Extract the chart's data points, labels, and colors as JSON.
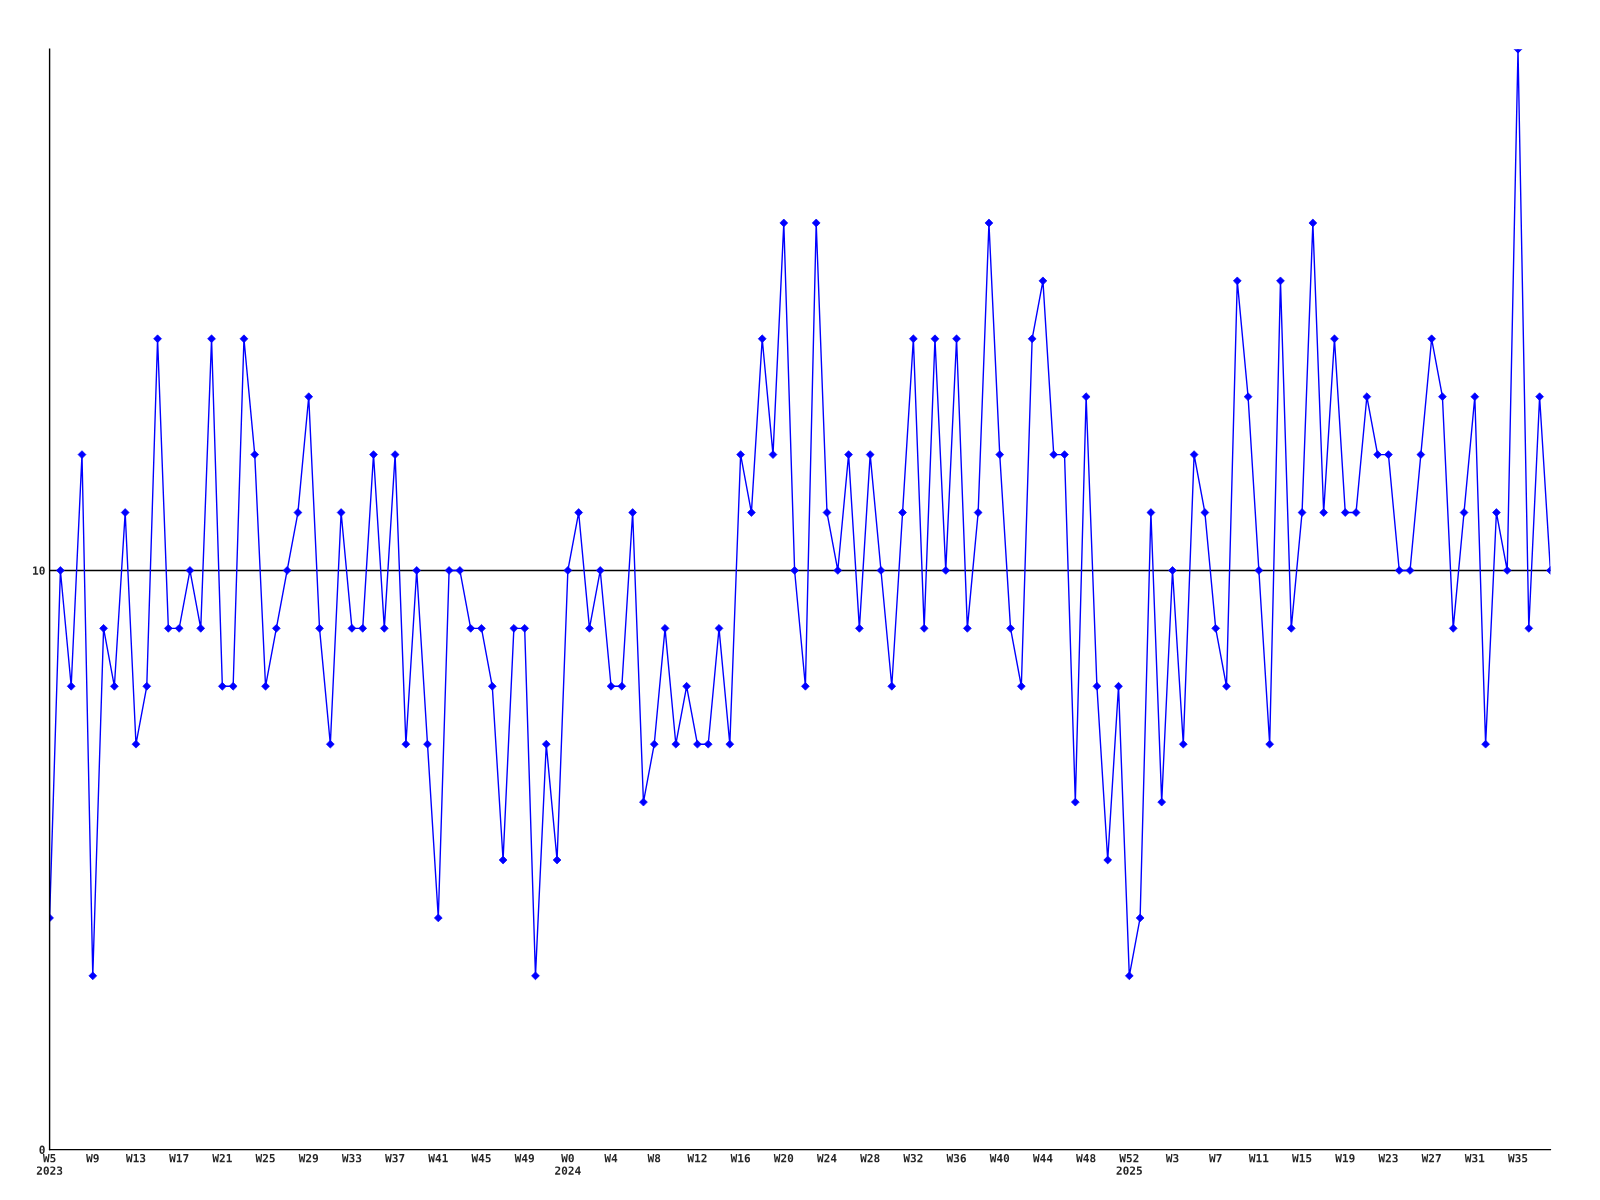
{
  "chart_data": {
    "type": "line",
    "categories": [
      "W5\n2023",
      null,
      null,
      null,
      "W9",
      null,
      null,
      null,
      "W13",
      null,
      null,
      null,
      "W17",
      null,
      null,
      null,
      "W21",
      null,
      null,
      null,
      "W25",
      null,
      null,
      null,
      "W29",
      null,
      null,
      null,
      "W33",
      null,
      null,
      null,
      "W37",
      null,
      null,
      null,
      "W41",
      null,
      null,
      null,
      "W45",
      null,
      null,
      null,
      "W49",
      null,
      null,
      null,
      "W0\n2024",
      null,
      null,
      null,
      "W4",
      null,
      null,
      null,
      "W8",
      null,
      null,
      null,
      "W12",
      null,
      null,
      null,
      "W16",
      null,
      null,
      null,
      "W20",
      null,
      null,
      null,
      "W24",
      null,
      null,
      null,
      "W28",
      null,
      null,
      null,
      "W32",
      null,
      null,
      null,
      "W36",
      null,
      null,
      null,
      "W40",
      null,
      null,
      null,
      "W44",
      null,
      null,
      null,
      "W48",
      null,
      null,
      null,
      "W52\n2025",
      null,
      null,
      null,
      "W3",
      null,
      null,
      null,
      "W7",
      null,
      null,
      null,
      "W11",
      null,
      null,
      null,
      "W15",
      null,
      null,
      null,
      "W19",
      null,
      null,
      null,
      "W23",
      null,
      null,
      null,
      "W27",
      null,
      null,
      null,
      "W31",
      null,
      null,
      null,
      "W35",
      null,
      null,
      null
    ],
    "series": [
      {
        "color": "#0000ff",
        "values": [
          4,
          10,
          8,
          12,
          3,
          9,
          8,
          11,
          7,
          8,
          14,
          9,
          9,
          10,
          9,
          14,
          8,
          8,
          14,
          12,
          8,
          9,
          10,
          11,
          13,
          9,
          7,
          11,
          9,
          9,
          12,
          9,
          12,
          7,
          10,
          7,
          4,
          10,
          10,
          9,
          9,
          8,
          5,
          9,
          9,
          3,
          7,
          5,
          10,
          11,
          9,
          10,
          8,
          8,
          11,
          6,
          7,
          9,
          7,
          8,
          7,
          7,
          9,
          7,
          12,
          11,
          14,
          12,
          16,
          10,
          8,
          16,
          11,
          10,
          12,
          9,
          12,
          10,
          8,
          11,
          14,
          9,
          14,
          10,
          14,
          9,
          11,
          16,
          12,
          9,
          8,
          14,
          15,
          12,
          12,
          6,
          13,
          8,
          5,
          8,
          3,
          4,
          11,
          6,
          10,
          7,
          12,
          11,
          9,
          8,
          15,
          13,
          10,
          7,
          15,
          9,
          11,
          16,
          11,
          14,
          11,
          11,
          13,
          12,
          12,
          10,
          10,
          12,
          14,
          13,
          9,
          11,
          13,
          7,
          11,
          10,
          19,
          9,
          13,
          10
        ]
      }
    ],
    "ylim": [
      0,
      19
    ],
    "yticks": [
      0,
      10
    ],
    "grid": "y",
    "marker": "diamond",
    "line_style": "solid"
  }
}
